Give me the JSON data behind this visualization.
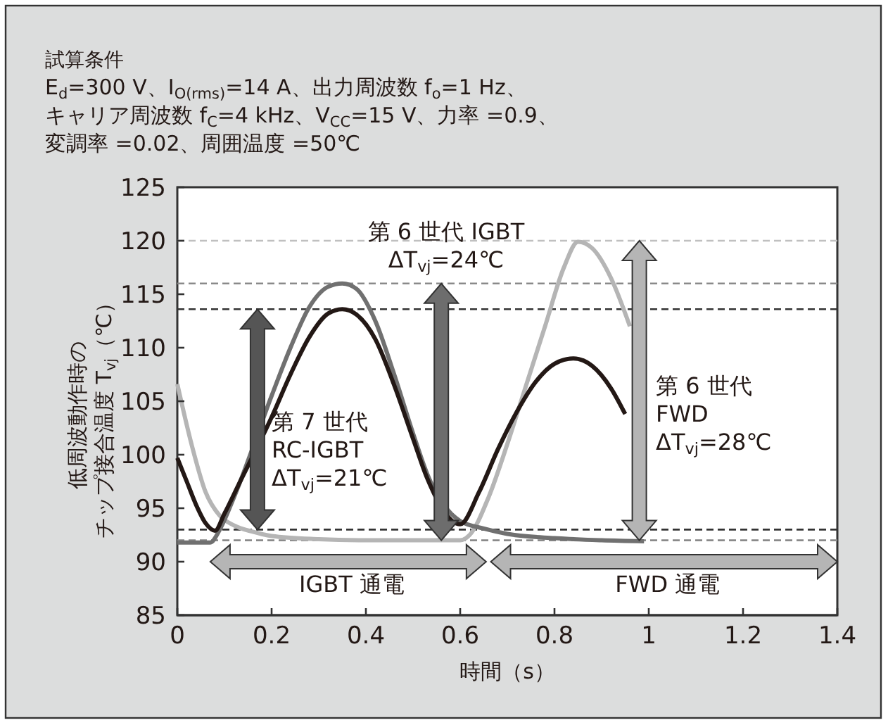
{
  "chart_data": {
    "type": "line",
    "title": "試算条件",
    "subtitle": "E$_{d}$=300 V、I$_{O(rms)}$=14 A、出力周波数 f$_{o}$=1 Hz、キャリア周波数 f$_{C}$=4 kHz、V$_{CC}$=15 V、力率 =0.9、変調率 =0.02、周囲温度 =50℃",
    "xlabel": "時間（s）",
    "ylabel": "低周波動作時のチップ接合温度 T$_{vj}$（℃）",
    "xlim": [
      0,
      1.4
    ],
    "xticks": [
      0,
      0.2,
      0.4,
      0.6,
      0.8,
      1.0,
      1.2,
      1.4
    ],
    "ylim": [
      85,
      125
    ],
    "yticks": [
      85,
      90,
      95,
      100,
      105,
      110,
      115,
      120,
      125
    ],
    "grid": false,
    "marker": "none",
    "line_style": "solid",
    "series": [
      {
        "color": "#b5b5b5",
        "x": [
          0,
          0.03,
          0.06,
          0.09,
          0.12,
          0.16,
          0.2,
          0.3,
          0.4,
          0.5,
          0.6,
          0.62,
          0.66,
          0.7,
          0.74,
          0.78,
          0.82,
          0.85,
          0.88,
          0.92,
          0.96
        ],
        "values": [
          106.6,
          101,
          96.5,
          94.3,
          93.4,
          92.8,
          92.4,
          92.1,
          92,
          92,
          92,
          92.5,
          96,
          101,
          106.5,
          112,
          117.5,
          119.9,
          119.3,
          116.5,
          112
        ]
      },
      {
        "color": "#707070",
        "x": [
          0,
          0.07,
          0.09,
          0.12,
          0.2,
          0.24,
          0.28,
          0.32,
          0.35,
          0.38,
          0.42,
          0.46,
          0.5,
          0.53,
          0.6,
          0.65,
          0.7,
          0.8,
          0.9,
          0.99
        ],
        "values": [
          91.8,
          91.8,
          93,
          96,
          105.5,
          110,
          113.8,
          115.7,
          116,
          115.5,
          112.5,
          107.5,
          102,
          98.2,
          93.8,
          93.1,
          92.6,
          92.2,
          92,
          91.9
        ]
      },
      {
        "color": "#231815",
        "x": [
          0,
          0.02,
          0.04,
          0.06,
          0.08,
          0.1,
          0.13,
          0.2,
          0.24,
          0.28,
          0.32,
          0.35,
          0.38,
          0.42,
          0.46,
          0.5,
          0.53,
          0.6,
          0.64,
          0.68,
          0.72,
          0.76,
          0.8,
          0.84,
          0.88,
          0.92,
          0.95
        ],
        "values": [
          99.7,
          97.5,
          95.3,
          93.6,
          92.9,
          94.5,
          97.2,
          103.5,
          107.5,
          111,
          113.2,
          113.6,
          113.1,
          110.8,
          106.5,
          101.5,
          97.8,
          93.5,
          96.5,
          100.5,
          104,
          106.8,
          108.5,
          109,
          108.3,
          106.2,
          103.8
        ]
      }
    ],
    "ref_lines": [
      {
        "axis": "y",
        "value": 120,
        "color": "#c0c0c0",
        "line_style": "dashed"
      },
      {
        "axis": "y",
        "value": 116,
        "color": "#8a8a8a",
        "line_style": "dashed"
      },
      {
        "axis": "y",
        "value": 113.6,
        "color": "#333333",
        "line_style": "dashed"
      },
      {
        "axis": "y",
        "value": 93,
        "color": "#333333",
        "line_style": "dashed"
      },
      {
        "axis": "y",
        "value": 92,
        "color": "#8a8a8a",
        "line_style": "dashed"
      }
    ],
    "annotations": [
      "第 6 世代 IGBT\nΔT$_{vj}$=24℃",
      "第 7 世代\nRC-IGBT\nΔT$_{vj}$=21℃",
      "第 6 世代\nFWD\nΔT$_{vj}$=28℃",
      "IGBT 通電",
      "FWD 通電"
    ]
  }
}
